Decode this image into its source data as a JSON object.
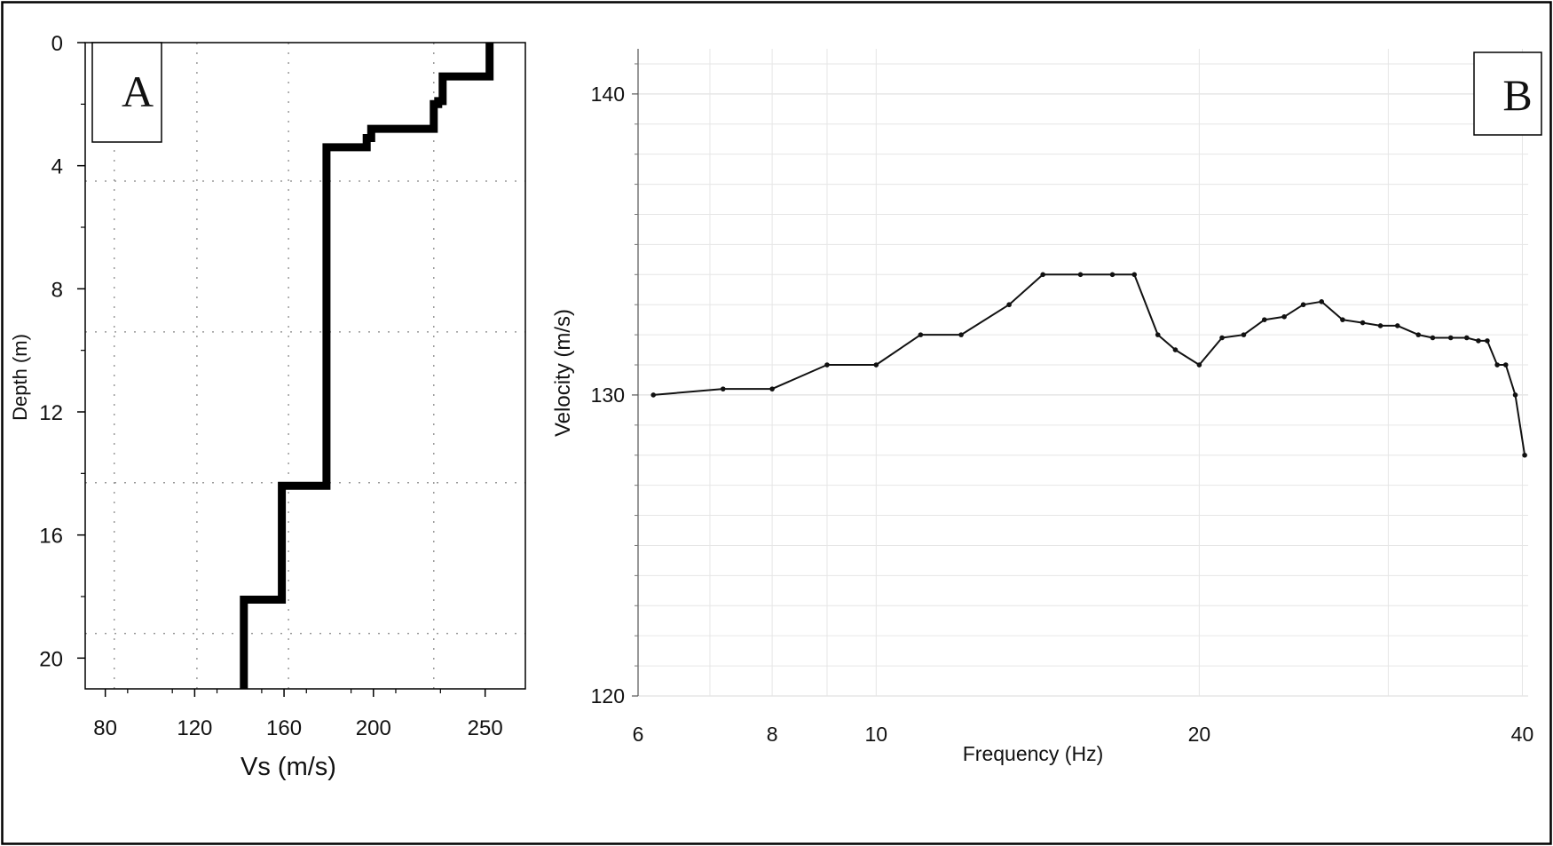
{
  "chart_data": [
    {
      "panel_label": "A",
      "type": "line",
      "subtype": "step-profile",
      "xlabel": "Vs (m/s)",
      "ylabel": "Depth (m)",
      "xlim": [
        71,
        268
      ],
      "ylim": [
        0,
        21
      ],
      "y_inverted": true,
      "x_ticks": [
        80,
        120,
        160,
        200,
        250
      ],
      "x_tick_labels": [
        "80",
        "120",
        "160",
        "200",
        "250"
      ],
      "y_ticks": [
        0,
        4,
        8,
        12,
        16,
        20
      ],
      "y_tick_labels": [
        "0",
        "4",
        "8",
        "12",
        "16",
        "20"
      ],
      "grid": "dotted",
      "grid_x": [
        84,
        121,
        162,
        227
      ],
      "grid_y": [
        4.5,
        9.4,
        14.3,
        19.2
      ],
      "series": [
        {
          "x": [
            252,
            252,
            231,
            231,
            229,
            229,
            227,
            227,
            199,
            199,
            197,
            197,
            179,
            179,
            159,
            159,
            142,
            142
          ],
          "y": [
            0,
            1.1,
            1.1,
            1.9,
            1.9,
            2.0,
            2.0,
            2.8,
            2.8,
            3.1,
            3.1,
            3.4,
            3.4,
            14.4,
            14.4,
            18.1,
            18.1,
            21
          ]
        }
      ]
    },
    {
      "panel_label": "B",
      "type": "line",
      "xlabel": "Frequency (Hz)",
      "ylabel": "Velocity (m/s)",
      "x_scale": "log",
      "xlim": [
        6,
        40.5
      ],
      "ylim": [
        120,
        141.5
      ],
      "x_ticks": [
        6,
        8,
        10,
        20,
        40
      ],
      "x_tick_labels": [
        "6",
        "8",
        "10",
        "20",
        "40"
      ],
      "y_ticks": [
        120,
        130,
        140
      ],
      "y_tick_labels": [
        "120",
        "130",
        "140"
      ],
      "grid": "solid-light",
      "series": [
        {
          "x": [
            6.2,
            7.2,
            8.0,
            9.0,
            10.0,
            11.0,
            12.0,
            13.3,
            14.3,
            15.5,
            16.6,
            17.4,
            18.3,
            19.0,
            20.0,
            21.0,
            22.0,
            23.0,
            24.0,
            25.0,
            26.0,
            27.2,
            28.4,
            29.5,
            30.6,
            32.0,
            33.0,
            34.3,
            35.5,
            36.4,
            37.1,
            37.9,
            38.6,
            39.4,
            40.2
          ],
          "y": [
            130.0,
            130.2,
            130.2,
            131.0,
            131.0,
            132.0,
            132.0,
            133.0,
            134.0,
            134.0,
            134.0,
            134.0,
            132.0,
            131.5,
            131.0,
            131.9,
            132.0,
            132.5,
            132.6,
            133.0,
            133.1,
            132.5,
            132.4,
            132.3,
            132.3,
            132.0,
            131.9,
            131.9,
            131.9,
            131.8,
            131.8,
            131.0,
            131.0,
            130.0,
            128.0
          ]
        }
      ]
    }
  ],
  "colors": {
    "frame": "#000000",
    "line": "#000000",
    "grid_a": "#9a9a9a",
    "grid_b": "#e6e6e6",
    "background": "#ffffff"
  }
}
